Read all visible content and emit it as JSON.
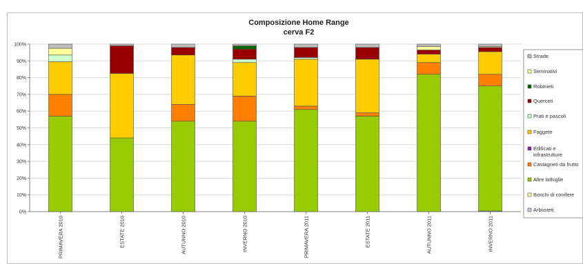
{
  "chart_data": {
    "type": "bar",
    "stacked": true,
    "title": "Composizione Home Range",
    "subtitle": "cerva F2",
    "ylim": [
      0,
      100
    ],
    "yticks": [
      "0%",
      "10%",
      "20%",
      "30%",
      "40%",
      "50%",
      "60%",
      "70%",
      "80%",
      "90%",
      "100%"
    ],
    "grid": true,
    "legend_position": "right",
    "categories": [
      "PRIMAVERA 2010",
      "ESTATE 2010",
      "AUTUNNO 2010",
      "INVERNO 2010",
      "PRIMAVERA 2011",
      "ESTATE 2011",
      "AUTUNNO 2011",
      "INVERNO 2011"
    ],
    "series": [
      {
        "name": "Arbusteti",
        "color": "#c9c3e6",
        "values": [
          0,
          0,
          0,
          0,
          0,
          0,
          0,
          0.4
        ]
      },
      {
        "name": "Boschi di conifere",
        "color": "#ffff99",
        "values": [
          0,
          0,
          0,
          0,
          0,
          0,
          0,
          0
        ]
      },
      {
        "name": "Altre latfoglie",
        "color": "#99cc00",
        "values": [
          57,
          44,
          54,
          54,
          61,
          57,
          82,
          74.6
        ]
      },
      {
        "name": "Castagneti da frutto",
        "color": "#ff8000",
        "values": [
          13,
          0,
          10,
          15,
          2,
          2,
          7,
          7
        ]
      },
      {
        "name": "Edificati e infrastrutture",
        "color": "#7030a0",
        "values": [
          0,
          0,
          0,
          0,
          0,
          0,
          0,
          0
        ]
      },
      {
        "name": "Faggete",
        "color": "#ffcc00",
        "values": [
          19.5,
          38.5,
          29.5,
          20,
          28,
          32,
          5,
          13.5
        ]
      },
      {
        "name": "Prati e pascoli",
        "color": "#ccffcc",
        "values": [
          4,
          0,
          0,
          2,
          1,
          0,
          0,
          0
        ]
      },
      {
        "name": "Querceti",
        "color": "#990000",
        "values": [
          0,
          16.5,
          4.5,
          6,
          6,
          7,
          2.5,
          2.5
        ]
      },
      {
        "name": "Robinieti",
        "color": "#006600",
        "values": [
          0,
          0,
          0,
          2,
          0,
          0,
          0,
          0
        ]
      },
      {
        "name": "Seminativi",
        "color": "#ffff99",
        "values": [
          4,
          0,
          0,
          0,
          0,
          0,
          2,
          0.5
        ]
      },
      {
        "name": "Strade",
        "color": "#bfbfbf",
        "values": [
          2.5,
          1,
          2,
          1,
          2,
          2,
          1.5,
          1.5
        ]
      }
    ],
    "legend_labels": [
      "Strade",
      "Seminativi",
      "Robinieti",
      "Querceti",
      "Prati e pascoli",
      "Faggete",
      "Edificati e infrastrutture",
      "Castagneti da frutto",
      "Altre latfoglie",
      "Boschi di conifere",
      "Arbusteti"
    ]
  }
}
